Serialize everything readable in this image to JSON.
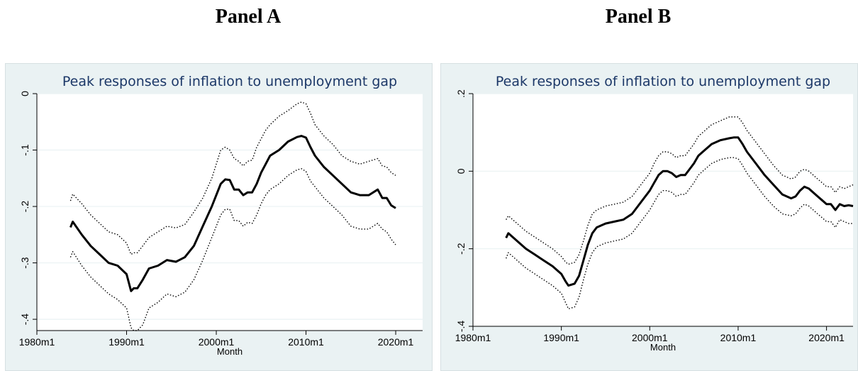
{
  "panels": [
    {
      "label": "Panel A"
    },
    {
      "label": "Panel B"
    }
  ],
  "chart_data": [
    {
      "type": "line",
      "title": "Peak responses of inflation to unemployment gap",
      "xlabel": "Month",
      "ylabel": "",
      "xlim": [
        1980,
        2023
      ],
      "ylim": [
        -0.42,
        0
      ],
      "x_ticks": [
        1980,
        1990,
        2000,
        2010,
        2020
      ],
      "x_tick_labels": [
        "1980m1",
        "1990m1",
        "2000m1",
        "2010m1",
        "2020m1"
      ],
      "y_ticks": [
        0,
        -0.1,
        -0.2,
        -0.3,
        -0.4
      ],
      "y_tick_labels": [
        "0",
        "-.1",
        "-.2",
        "-.3",
        "-.4"
      ],
      "grid": true,
      "series": [
        {
          "role": "estimate",
          "x": [
            1983.75,
            1984.0,
            1985.0,
            1986.0,
            1987.0,
            1988.0,
            1989.0,
            1990.0,
            1990.5,
            1990.8,
            1991.2,
            1991.8,
            1992.5,
            1993.5,
            1994.5,
            1995.5,
            1996.5,
            1997.5,
            1998.5,
            1999.5,
            2000.0,
            2000.5,
            2001.0,
            2001.5,
            2002.0,
            2002.5,
            2003.0,
            2003.5,
            2004.0,
            2004.5,
            2005.0,
            2005.5,
            2006.0,
            2007.0,
            2008.0,
            2009.0,
            2009.5,
            2010.0,
            2010.5,
            2011.0,
            2012.0,
            2013.0,
            2014.0,
            2015.0,
            2016.0,
            2017.0,
            2018.0,
            2018.5,
            2019.0,
            2019.5,
            2020.0
          ],
          "y": [
            -0.237,
            -0.227,
            -0.25,
            -0.27,
            -0.285,
            -0.3,
            -0.305,
            -0.32,
            -0.35,
            -0.345,
            -0.345,
            -0.33,
            -0.31,
            -0.305,
            -0.295,
            -0.298,
            -0.29,
            -0.27,
            -0.235,
            -0.2,
            -0.18,
            -0.16,
            -0.152,
            -0.153,
            -0.17,
            -0.17,
            -0.18,
            -0.175,
            -0.175,
            -0.16,
            -0.14,
            -0.125,
            -0.11,
            -0.1,
            -0.085,
            -0.077,
            -0.075,
            -0.078,
            -0.095,
            -0.11,
            -0.13,
            -0.145,
            -0.16,
            -0.175,
            -0.18,
            -0.18,
            -0.17,
            -0.185,
            -0.185,
            -0.198,
            -0.203
          ]
        },
        {
          "role": "upper-band",
          "x": [
            1983.75,
            1984.0,
            1985.0,
            1986.0,
            1987.0,
            1988.0,
            1989.0,
            1990.0,
            1990.5,
            1990.8,
            1991.2,
            1991.8,
            1992.5,
            1993.5,
            1994.5,
            1995.5,
            1996.5,
            1997.5,
            1998.5,
            1999.5,
            2000.0,
            2000.5,
            2001.0,
            2001.5,
            2002.0,
            2002.5,
            2003.0,
            2003.5,
            2004.0,
            2004.5,
            2005.0,
            2005.5,
            2006.0,
            2007.0,
            2008.0,
            2009.0,
            2009.5,
            2010.0,
            2010.5,
            2011.0,
            2012.0,
            2013.0,
            2014.0,
            2015.0,
            2016.0,
            2017.0,
            2018.0,
            2018.5,
            2019.0,
            2019.5,
            2020.0
          ],
          "y": [
            -0.19,
            -0.178,
            -0.195,
            -0.215,
            -0.23,
            -0.245,
            -0.25,
            -0.265,
            -0.285,
            -0.282,
            -0.282,
            -0.27,
            -0.255,
            -0.245,
            -0.235,
            -0.238,
            -0.232,
            -0.21,
            -0.185,
            -0.15,
            -0.125,
            -0.1,
            -0.095,
            -0.1,
            -0.115,
            -0.12,
            -0.128,
            -0.12,
            -0.118,
            -0.095,
            -0.08,
            -0.065,
            -0.055,
            -0.04,
            -0.03,
            -0.018,
            -0.015,
            -0.018,
            -0.035,
            -0.055,
            -0.075,
            -0.09,
            -0.11,
            -0.12,
            -0.125,
            -0.12,
            -0.115,
            -0.128,
            -0.13,
            -0.14,
            -0.145
          ]
        },
        {
          "role": "lower-band",
          "x": [
            1983.75,
            1984.0,
            1985.0,
            1986.0,
            1987.0,
            1988.0,
            1989.0,
            1990.0,
            1990.5,
            1990.8,
            1991.2,
            1991.8,
            1992.5,
            1993.5,
            1994.5,
            1995.5,
            1996.5,
            1997.5,
            1998.5,
            1999.5,
            2000.0,
            2000.5,
            2001.0,
            2001.5,
            2002.0,
            2002.5,
            2003.0,
            2003.5,
            2004.0,
            2004.5,
            2005.0,
            2005.5,
            2006.0,
            2007.0,
            2008.0,
            2009.0,
            2009.5,
            2010.0,
            2010.5,
            2011.0,
            2012.0,
            2013.0,
            2014.0,
            2015.0,
            2016.0,
            2017.0,
            2018.0,
            2018.5,
            2019.0,
            2019.5,
            2020.0
          ],
          "y": [
            -0.29,
            -0.28,
            -0.305,
            -0.325,
            -0.34,
            -0.355,
            -0.365,
            -0.38,
            -0.415,
            -0.42,
            -0.42,
            -0.41,
            -0.38,
            -0.37,
            -0.355,
            -0.36,
            -0.352,
            -0.33,
            -0.295,
            -0.255,
            -0.235,
            -0.215,
            -0.205,
            -0.205,
            -0.225,
            -0.225,
            -0.235,
            -0.228,
            -0.23,
            -0.215,
            -0.195,
            -0.18,
            -0.17,
            -0.16,
            -0.145,
            -0.135,
            -0.133,
            -0.138,
            -0.155,
            -0.165,
            -0.185,
            -0.2,
            -0.215,
            -0.235,
            -0.24,
            -0.24,
            -0.23,
            -0.24,
            -0.245,
            -0.258,
            -0.268
          ]
        }
      ]
    },
    {
      "type": "line",
      "title": "Peak responses of inflation to unemployment gap",
      "xlabel": "Month",
      "ylabel": "",
      "xlim": [
        1980,
        2023
      ],
      "ylim": [
        -0.4,
        0.2
      ],
      "x_ticks": [
        1980,
        1990,
        2000,
        2010,
        2020
      ],
      "x_tick_labels": [
        "1980m1",
        "1990m1",
        "2000m1",
        "2010m1",
        "2020m1"
      ],
      "y_ticks": [
        0.2,
        0,
        -0.2,
        -0.4
      ],
      "y_tick_labels": [
        ".2",
        "0",
        "-.2",
        "-.4"
      ],
      "grid": true,
      "series": [
        {
          "role": "estimate",
          "x": [
            1983.75,
            1984.0,
            1985.0,
            1986.0,
            1987.0,
            1988.0,
            1989.0,
            1990.0,
            1990.5,
            1990.8,
            1991.5,
            1992.0,
            1992.5,
            1993.0,
            1993.5,
            1994.0,
            1994.5,
            1995.0,
            1996.0,
            1997.0,
            1998.0,
            1999.0,
            2000.0,
            2000.5,
            2001.0,
            2001.5,
            2002.0,
            2002.5,
            2003.0,
            2003.5,
            2004.0,
            2004.5,
            2005.0,
            2005.5,
            2006.0,
            2007.0,
            2008.0,
            2009.0,
            2009.5,
            2010.0,
            2010.5,
            2011.0,
            2012.0,
            2013.0,
            2014.0,
            2015.0,
            2016.0,
            2016.5,
            2017.0,
            2017.5,
            2018.0,
            2018.5,
            2019.0,
            2019.5,
            2020.0,
            2020.5,
            2021.0,
            2021.5,
            2022.0,
            2022.5,
            2023.0
          ],
          "y": [
            -0.172,
            -0.16,
            -0.18,
            -0.2,
            -0.215,
            -0.23,
            -0.245,
            -0.265,
            -0.285,
            -0.295,
            -0.29,
            -0.27,
            -0.23,
            -0.19,
            -0.16,
            -0.145,
            -0.14,
            -0.135,
            -0.13,
            -0.125,
            -0.11,
            -0.08,
            -0.05,
            -0.03,
            -0.01,
            0.0,
            0.0,
            -0.005,
            -0.015,
            -0.01,
            -0.01,
            0.005,
            0.02,
            0.04,
            0.05,
            0.07,
            0.08,
            0.085,
            0.087,
            0.087,
            0.07,
            0.05,
            0.02,
            -0.01,
            -0.035,
            -0.06,
            -0.07,
            -0.065,
            -0.05,
            -0.04,
            -0.045,
            -0.055,
            -0.065,
            -0.075,
            -0.085,
            -0.085,
            -0.1,
            -0.085,
            -0.09,
            -0.088,
            -0.09
          ]
        },
        {
          "role": "upper-band",
          "x": [
            1983.75,
            1984.0,
            1985.0,
            1986.0,
            1987.0,
            1988.0,
            1989.0,
            1990.0,
            1990.5,
            1990.8,
            1991.5,
            1992.0,
            1992.5,
            1993.0,
            1993.5,
            1994.0,
            1994.5,
            1995.0,
            1996.0,
            1997.0,
            1998.0,
            1999.0,
            2000.0,
            2000.5,
            2001.0,
            2001.5,
            2002.0,
            2002.5,
            2003.0,
            2003.5,
            2004.0,
            2004.5,
            2005.0,
            2005.5,
            2006.0,
            2007.0,
            2008.0,
            2009.0,
            2009.5,
            2010.0,
            2010.5,
            2011.0,
            2012.0,
            2013.0,
            2014.0,
            2015.0,
            2016.0,
            2016.5,
            2017.0,
            2017.5,
            2018.0,
            2018.5,
            2019.0,
            2019.5,
            2020.0,
            2020.5,
            2021.0,
            2021.5,
            2022.0,
            2022.5,
            2023.0
          ],
          "y": [
            -0.125,
            -0.115,
            -0.135,
            -0.155,
            -0.17,
            -0.185,
            -0.2,
            -0.22,
            -0.235,
            -0.24,
            -0.235,
            -0.215,
            -0.18,
            -0.14,
            -0.11,
            -0.1,
            -0.095,
            -0.09,
            -0.085,
            -0.08,
            -0.065,
            -0.035,
            -0.005,
            0.02,
            0.04,
            0.05,
            0.05,
            0.045,
            0.035,
            0.04,
            0.04,
            0.055,
            0.07,
            0.09,
            0.1,
            0.12,
            0.13,
            0.14,
            0.14,
            0.14,
            0.125,
            0.105,
            0.075,
            0.045,
            0.015,
            -0.01,
            -0.02,
            -0.015,
            0.0,
            0.005,
            0.0,
            -0.01,
            -0.02,
            -0.03,
            -0.04,
            -0.04,
            -0.055,
            -0.04,
            -0.045,
            -0.04,
            -0.035
          ]
        },
        {
          "role": "lower-band",
          "x": [
            1983.75,
            1984.0,
            1985.0,
            1986.0,
            1987.0,
            1988.0,
            1989.0,
            1990.0,
            1990.5,
            1990.8,
            1991.5,
            1992.0,
            1992.5,
            1993.0,
            1993.5,
            1994.0,
            1994.5,
            1995.0,
            1996.0,
            1997.0,
            1998.0,
            1999.0,
            2000.0,
            2000.5,
            2001.0,
            2001.5,
            2002.0,
            2002.5,
            2003.0,
            2003.5,
            2004.0,
            2004.5,
            2005.0,
            2005.5,
            2006.0,
            2007.0,
            2008.0,
            2009.0,
            2009.5,
            2010.0,
            2010.5,
            2011.0,
            2012.0,
            2013.0,
            2014.0,
            2015.0,
            2016.0,
            2016.5,
            2017.0,
            2017.5,
            2018.0,
            2018.5,
            2019.0,
            2019.5,
            2020.0,
            2020.5,
            2021.0,
            2021.5,
            2022.0,
            2022.5,
            2023.0
          ],
          "y": [
            -0.225,
            -0.21,
            -0.23,
            -0.25,
            -0.265,
            -0.28,
            -0.295,
            -0.315,
            -0.34,
            -0.355,
            -0.35,
            -0.325,
            -0.28,
            -0.24,
            -0.21,
            -0.195,
            -0.19,
            -0.185,
            -0.18,
            -0.175,
            -0.16,
            -0.13,
            -0.1,
            -0.08,
            -0.06,
            -0.05,
            -0.05,
            -0.055,
            -0.065,
            -0.06,
            -0.06,
            -0.045,
            -0.03,
            -0.01,
            0.0,
            0.02,
            0.03,
            0.035,
            0.035,
            0.032,
            0.015,
            -0.005,
            -0.035,
            -0.065,
            -0.09,
            -0.11,
            -0.115,
            -0.11,
            -0.095,
            -0.085,
            -0.09,
            -0.1,
            -0.11,
            -0.12,
            -0.13,
            -0.13,
            -0.145,
            -0.125,
            -0.13,
            -0.135,
            -0.135
          ]
        }
      ]
    }
  ]
}
